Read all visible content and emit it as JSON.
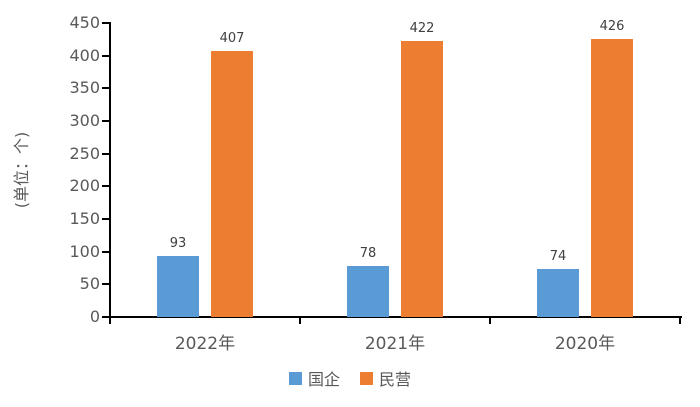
{
  "chart_data": {
    "type": "bar",
    "title": "",
    "xlabel": "",
    "ylabel": "(单位：个)",
    "categories": [
      "2022年",
      "2021年",
      "2020年"
    ],
    "series": [
      {
        "name": "国企",
        "color": "#5B9BD5",
        "values": [
          93,
          78,
          74
        ]
      },
      {
        "name": "民营",
        "color": "#ED7D31",
        "values": [
          407,
          422,
          426
        ]
      }
    ],
    "ylim": [
      0,
      450
    ],
    "yticks": [
      0,
      50,
      100,
      150,
      200,
      250,
      300,
      350,
      400,
      450
    ],
    "grid": false,
    "legend_position": "bottom",
    "data_labels": true
  },
  "style": {
    "axis_color": "#000000",
    "tick_label_color": "#595959",
    "data_label_color": "#404040",
    "background": "#FFFFFF"
  }
}
